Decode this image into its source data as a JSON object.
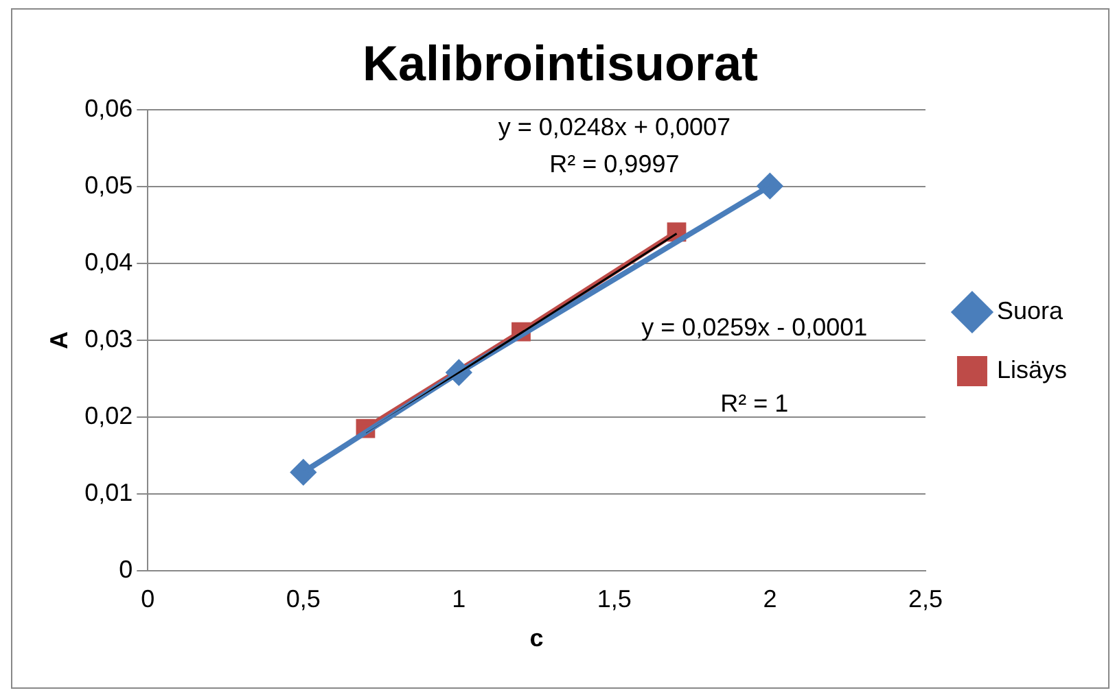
{
  "chart_data": {
    "type": "line",
    "title": "Kalibrointisuorat",
    "xlabel": "c",
    "ylabel": "A",
    "xlim": [
      0,
      2.5
    ],
    "xticks": [
      0,
      {
        "value": 0.5,
        "label": "0,5"
      },
      1,
      {
        "value": 1.5,
        "label": "1,5"
      },
      2,
      {
        "value": 2.5,
        "label": "2,5"
      }
    ],
    "ylim": [
      0,
      0.06
    ],
    "yticks": [
      0,
      {
        "value": 0.01,
        "label": "0,01"
      },
      {
        "value": 0.02,
        "label": "0,02"
      },
      {
        "value": 0.03,
        "label": "0,03"
      },
      {
        "value": 0.04,
        "label": "0,04"
      },
      {
        "value": 0.05,
        "label": "0,05"
      },
      {
        "value": 0.06,
        "label": "0,06"
      }
    ],
    "grid": "y",
    "legend": "right",
    "series": [
      {
        "name": "Suora",
        "color": "#4a7ebb",
        "marker": "diamond",
        "x": [
          0.5,
          1,
          2
        ],
        "values": [
          0.0128,
          0.0258,
          0.0501
        ]
      },
      {
        "name": "Lisäys",
        "color": "#be4b48",
        "marker": "square",
        "x": [
          0.7,
          1.2,
          1.7
        ],
        "values": [
          0.0185,
          0.0311,
          0.0441
        ]
      },
      {
        "color": "#4a7ebb",
        "marker": "none",
        "x": [
          0.5,
          2
        ],
        "values": [
          0.0131,
          0.0503
        ]
      },
      {
        "color": "#000000",
        "marker": "none",
        "x": [
          0.7,
          1.7
        ],
        "values": [
          0.018,
          0.0439
        ]
      }
    ],
    "annotations": [
      "y = 0,0248x + 0,0007",
      "R² = 0,9997",
      "y = 0,0259x - 0,0001",
      "R² = 1"
    ]
  }
}
